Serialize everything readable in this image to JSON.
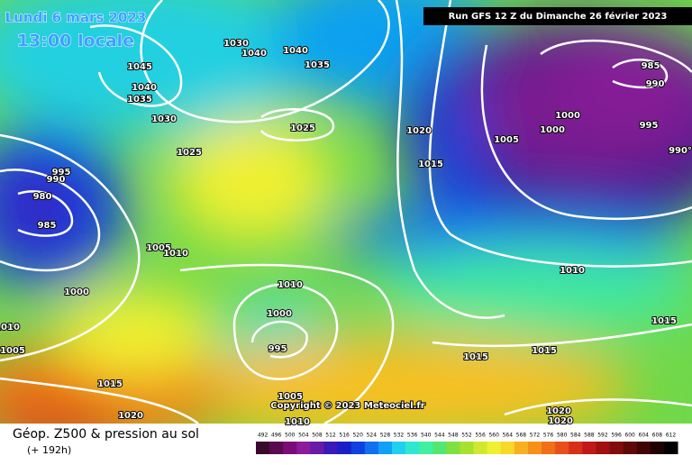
{
  "header": {
    "date": "Lundi 6 mars 2023",
    "time": "13:00 locale",
    "run": "Run GFS 12 Z du Dimanche 26 février 2023"
  },
  "footer": {
    "title": "Géop. Z500 & pression au sol",
    "lead": "(+ 192h)",
    "copyright": "Copyright © 2023 Meteociel.fr"
  },
  "isobars": [
    "1030",
    "1040",
    "1040",
    "1035",
    "1045",
    "1040",
    "1035",
    "1030",
    "1025",
    "1025",
    "1020",
    "1015",
    "1005",
    "1000",
    "1000",
    "995",
    "985",
    "990",
    "990°",
    "995",
    "990",
    "980",
    "985",
    "1005",
    "1010",
    "1000",
    "1010",
    "1000",
    "995",
    "1010",
    "1015",
    "1015",
    "1015",
    "1010",
    "1005",
    "1015",
    "1005",
    "1020",
    "1020",
    "1020",
    "1010"
  ],
  "scale": {
    "labels": [
      492,
      496,
      500,
      504,
      508,
      512,
      516,
      520,
      524,
      528,
      532,
      536,
      540,
      544,
      548,
      552,
      556,
      560,
      564,
      568,
      572,
      576,
      580,
      584,
      588,
      592,
      596,
      600,
      604,
      608,
      612
    ],
    "colors": [
      "#3a0a2e",
      "#5a0a50",
      "#7a0c78",
      "#8c1a9a",
      "#6a1aa8",
      "#3a1ab8",
      "#1a20c8",
      "#1040e0",
      "#1070f0",
      "#10a0f8",
      "#20d0f0",
      "#30e8d0",
      "#40f0a0",
      "#50e870",
      "#80e040",
      "#a8e030",
      "#d0e830",
      "#f0f030",
      "#f8d828",
      "#f8b020",
      "#f89018",
      "#f07018",
      "#e85018",
      "#d83018",
      "#c01818",
      "#a01010",
      "#800c0c",
      "#600808",
      "#400404",
      "#200202",
      "#000000"
    ]
  }
}
